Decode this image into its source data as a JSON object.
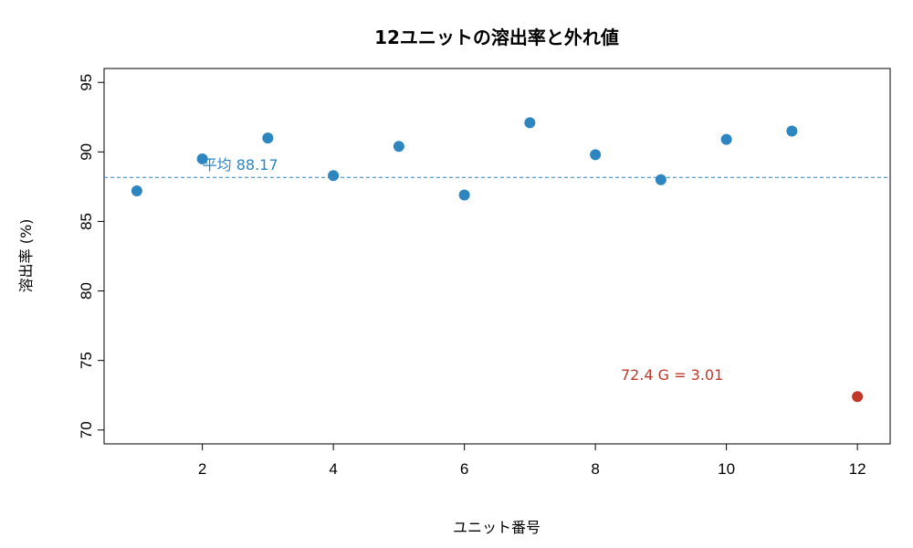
{
  "chart_data": {
    "type": "scatter",
    "title": "12ユニットの溶出率と外れ値",
    "xlabel": "ユニット番号",
    "ylabel": "溶出率 (%)",
    "xlim": [
      0.5,
      12.5
    ],
    "ylim": [
      69.0,
      96.0
    ],
    "x_ticks": [
      2,
      4,
      6,
      8,
      10,
      12
    ],
    "y_ticks": [
      70,
      75,
      80,
      85,
      90,
      95
    ],
    "grid": false,
    "points": [
      {
        "x": 1,
        "y": 87.2
      },
      {
        "x": 2,
        "y": 89.5
      },
      {
        "x": 3,
        "y": 91.0
      },
      {
        "x": 4,
        "y": 88.3
      },
      {
        "x": 5,
        "y": 90.4
      },
      {
        "x": 6,
        "y": 86.9
      },
      {
        "x": 7,
        "y": 92.1
      },
      {
        "x": 8,
        "y": 89.8
      },
      {
        "x": 9,
        "y": 88.0
      },
      {
        "x": 10,
        "y": 90.9
      },
      {
        "x": 11,
        "y": 91.5
      },
      {
        "x": 12,
        "y": 72.4,
        "outlier": true
      }
    ],
    "mean": {
      "value": 88.17,
      "label": "平均 88.17"
    },
    "outlier_label": "72.4  G = 3.01",
    "colors": {
      "point": "#2E86C1",
      "outlier": "#C0392B",
      "mean_line": "#2E86C1",
      "mean_label": "#2E86C1",
      "outlier_label": "#C0392B"
    }
  }
}
